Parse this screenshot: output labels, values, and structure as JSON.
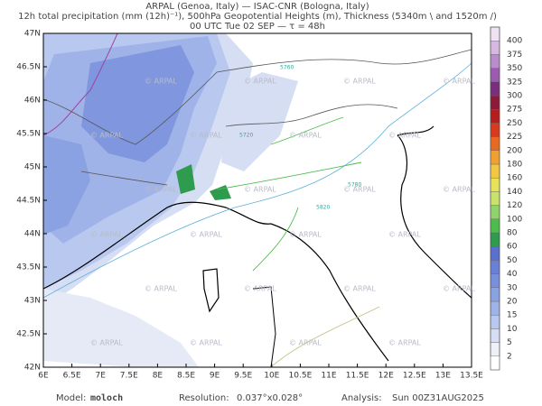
{
  "header": {
    "line1": "ARPAL (Genoa, Italy)  —  ISAC-CNR (Bologna, Italy)",
    "line2": "12h total precipitation (mm (12h)⁻¹), 500hPa Geopotential Heights (m), Thickness (5340m \\ and 1520m /)",
    "line3": "00 UTC Tue 02 SEP  —  τ = 48h"
  },
  "axes": {
    "lat_labels": [
      "47N",
      "46.5N",
      "46N",
      "45.5N",
      "45N",
      "44.5N",
      "44N",
      "43.5N",
      "43N",
      "42.5N",
      "42N"
    ],
    "lon_labels": [
      "6E",
      "6.5E",
      "7E",
      "7.5E",
      "8E",
      "8.5E",
      "9E",
      "9.5E",
      "10E",
      "10.5E",
      "11E",
      "11.5E",
      "12E",
      "12.5E",
      "13E",
      "13.5E"
    ]
  },
  "watermark": "© ARPAL",
  "contour_labels": [
    "5760",
    "5720",
    "5780",
    "5820"
  ],
  "colorbar": {
    "levels": [
      2,
      5,
      10,
      15,
      20,
      30,
      40,
      50,
      60,
      80,
      100,
      120,
      140,
      160,
      180,
      200,
      225,
      250,
      275,
      300,
      325,
      350,
      375,
      400
    ],
    "colors": [
      "#eef0f8",
      "#d6def4",
      "#b9c8ee",
      "#9fb3e8",
      "#8aa1e2",
      "#7890dc",
      "#6a80d6",
      "#5a6fcf",
      "#2f9b4e",
      "#4cbc4c",
      "#8fd36a",
      "#c8e26a",
      "#e6e35a",
      "#f2c744",
      "#f0a030",
      "#e86a22",
      "#d83a1e",
      "#b51e1e",
      "#8e1a3a",
      "#7a2f7e",
      "#9b5bb0",
      "#b98ccb",
      "#d6b9e0",
      "#efe3f3"
    ]
  },
  "footer": {
    "model_label": "Model:",
    "model": "moloch",
    "res_label": "Resolution:",
    "res": "0.037°x0.028°",
    "analysis_label": "Analysis:",
    "analysis": "Sun 00Z31AUG2025"
  }
}
